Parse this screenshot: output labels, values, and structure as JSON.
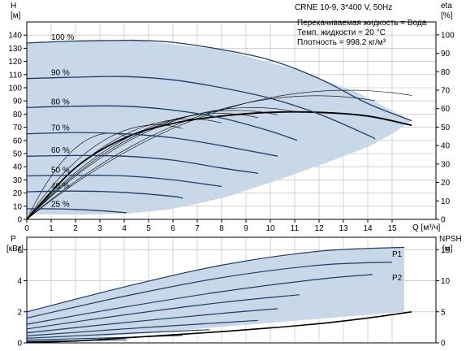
{
  "info": {
    "pump_title": "CRNE 10-9, 3*400 V, 50Hz",
    "liquid_line": "Перекачиваемая жидкость = Вода",
    "temp_line": "Темп. жидкости = 20 °C",
    "density_line": "Плотность = 998.2 кг/м³"
  },
  "colors": {
    "region_fill": "#c8d8e8",
    "curve_dark": "#1f3d66",
    "curve_thin": "#000000",
    "axis": "#000000",
    "grid": "#b8b8b8"
  },
  "chart_data": [
    {
      "type": "line",
      "name": "H-Q",
      "ylabel_left": "H",
      "ylabel_left_unit": "[м]",
      "ylabel_right": "eta",
      "ylabel_right_unit": "[%]",
      "xlabel": "Q [м³/ч]",
      "x_ticks": [
        "0",
        "1",
        "2",
        "3",
        "4",
        "5",
        "6",
        "7",
        "8",
        "9",
        "10",
        "11",
        "12",
        "13",
        "14",
        "15"
      ],
      "y_ticks_left": [
        "0",
        "10",
        "20",
        "30",
        "40",
        "50",
        "60",
        "70",
        "80",
        "90",
        "100",
        "110",
        "120",
        "130",
        "140"
      ],
      "y_ticks_right": [
        "0",
        "10",
        "20",
        "30",
        "40",
        "50",
        "60",
        "70",
        "80",
        "90",
        "100"
      ],
      "xlim": [
        0,
        16.8
      ],
      "ylim_left": [
        0,
        150
      ],
      "ylim_right": [
        0,
        107
      ],
      "grid": true,
      "speed_labels": [
        {
          "text": "100 %",
          "q": 1.0,
          "h": 134
        },
        {
          "text": "90 %",
          "q": 1.0,
          "h": 107
        },
        {
          "text": "80 %",
          "q": 1.0,
          "h": 85
        },
        {
          "text": "70 %",
          "q": 1.0,
          "h": 65
        },
        {
          "text": "60 %",
          "q": 1.0,
          "h": 48
        },
        {
          "text": "50 %",
          "q": 1.0,
          "h": 33
        },
        {
          "text": "40 %",
          "q": 1.0,
          "h": 21
        },
        {
          "text": "25 %",
          "q": 1.0,
          "h": 7
        }
      ],
      "region": [
        [
          0,
          134
        ],
        [
          2,
          135.5
        ],
        [
          4.5,
          136
        ],
        [
          8,
          129
        ],
        [
          11,
          114
        ],
        [
          13.5,
          97
        ],
        [
          15.8,
          75
        ],
        [
          15,
          65
        ],
        [
          14,
          55
        ],
        [
          12.3,
          43
        ],
        [
          10.8,
          33
        ],
        [
          9.5,
          25
        ],
        [
          8.2,
          17
        ],
        [
          7,
          12
        ],
        [
          5.8,
          7.5
        ],
        [
          4.2,
          4.5
        ],
        [
          2,
          3.5
        ],
        [
          0,
          4
        ]
      ],
      "series": [
        {
          "name": "100 %",
          "q": [
            0,
            2,
            4,
            4.5,
            6,
            8,
            10,
            12,
            14,
            15.8
          ],
          "h": [
            134,
            135.5,
            136,
            136,
            134.5,
            129,
            121,
            107,
            88,
            75
          ]
        },
        {
          "name": "90 %",
          "q": [
            0,
            2,
            4,
            6,
            8,
            10,
            12,
            14,
            14.3
          ],
          "h": [
            107,
            108,
            108.5,
            106,
            100,
            92,
            80,
            64,
            61
          ]
        },
        {
          "name": "80 %",
          "q": [
            0,
            2,
            4,
            6,
            8,
            10,
            11.1
          ],
          "h": [
            85,
            86,
            86,
            83,
            77,
            67,
            60
          ]
        },
        {
          "name": "70 %",
          "q": [
            0,
            2,
            4,
            6,
            8,
            10.3
          ],
          "h": [
            65,
            66,
            65,
            62,
            56,
            48
          ]
        },
        {
          "name": "60 %",
          "q": [
            0,
            2,
            4,
            6,
            8,
            9.5
          ],
          "h": [
            48,
            48.5,
            48,
            45,
            39,
            35
          ]
        },
        {
          "name": "50 %",
          "q": [
            0,
            2,
            4,
            6,
            8
          ],
          "h": [
            33,
            33.5,
            33,
            30,
            25
          ]
        },
        {
          "name": "40 %",
          "q": [
            0,
            2,
            4,
            6,
            6.4
          ],
          "h": [
            21,
            21.5,
            20.5,
            17.5,
            16
          ]
        },
        {
          "name": "25 %",
          "q": [
            0,
            1,
            2,
            3,
            4.1
          ],
          "h": [
            8,
            8,
            7.6,
            6.6,
            5
          ]
        }
      ]
    },
    {
      "type": "line",
      "name": "P-NPSH",
      "ylabel_left": "P",
      "ylabel_left_unit": "[кВт]",
      "ylabel_right": "NPSH",
      "ylabel_right_unit": "[м]",
      "y_ticks_left": [
        "0",
        "2",
        "4",
        "6"
      ],
      "y_ticks_right": [
        "0",
        "5",
        "10",
        "15"
      ],
      "ylim_left": [
        0,
        6.8
      ],
      "ylim_right": [
        0,
        17
      ],
      "series_labels": [
        "P1",
        "P2"
      ],
      "power_curves": [
        {
          "q": [
            0,
            4,
            8,
            12,
            15.5
          ],
          "p": [
            2.0,
            3.6,
            5.0,
            5.9,
            6.15
          ]
        },
        {
          "q": [
            0,
            4,
            8,
            12,
            15
          ],
          "p": [
            1.6,
            3.0,
            4.2,
            5.0,
            5.2
          ]
        },
        {
          "q": [
            0,
            4,
            8,
            12,
            14.2
          ],
          "p": [
            1.2,
            2.3,
            3.3,
            4.1,
            4.4
          ]
        },
        {
          "q": [
            0,
            4,
            8,
            11.2
          ],
          "p": [
            0.9,
            1.8,
            2.6,
            3.1
          ]
        },
        {
          "q": [
            0,
            4,
            8,
            10.3
          ],
          "p": [
            0.65,
            1.3,
            1.9,
            2.2
          ]
        },
        {
          "q": [
            0,
            4,
            8,
            9.5
          ],
          "p": [
            0.45,
            0.9,
            1.3,
            1.45
          ]
        },
        {
          "q": [
            0,
            4,
            7.5
          ],
          "p": [
            0.3,
            0.6,
            0.85
          ]
        },
        {
          "q": [
            0,
            4,
            6.4
          ],
          "p": [
            0.18,
            0.35,
            0.48
          ]
        },
        {
          "q": [
            0,
            2,
            4.1
          ],
          "p": [
            0.08,
            0.14,
            0.2
          ]
        }
      ],
      "npsh_curve": {
        "q": [
          0,
          2,
          4,
          6,
          8,
          10,
          12,
          14,
          15.8
        ],
        "npsh": [
          0.1,
          0.3,
          0.8,
          1.3,
          1.8,
          2.4,
          3.1,
          4.0,
          5.0
        ]
      }
    }
  ]
}
